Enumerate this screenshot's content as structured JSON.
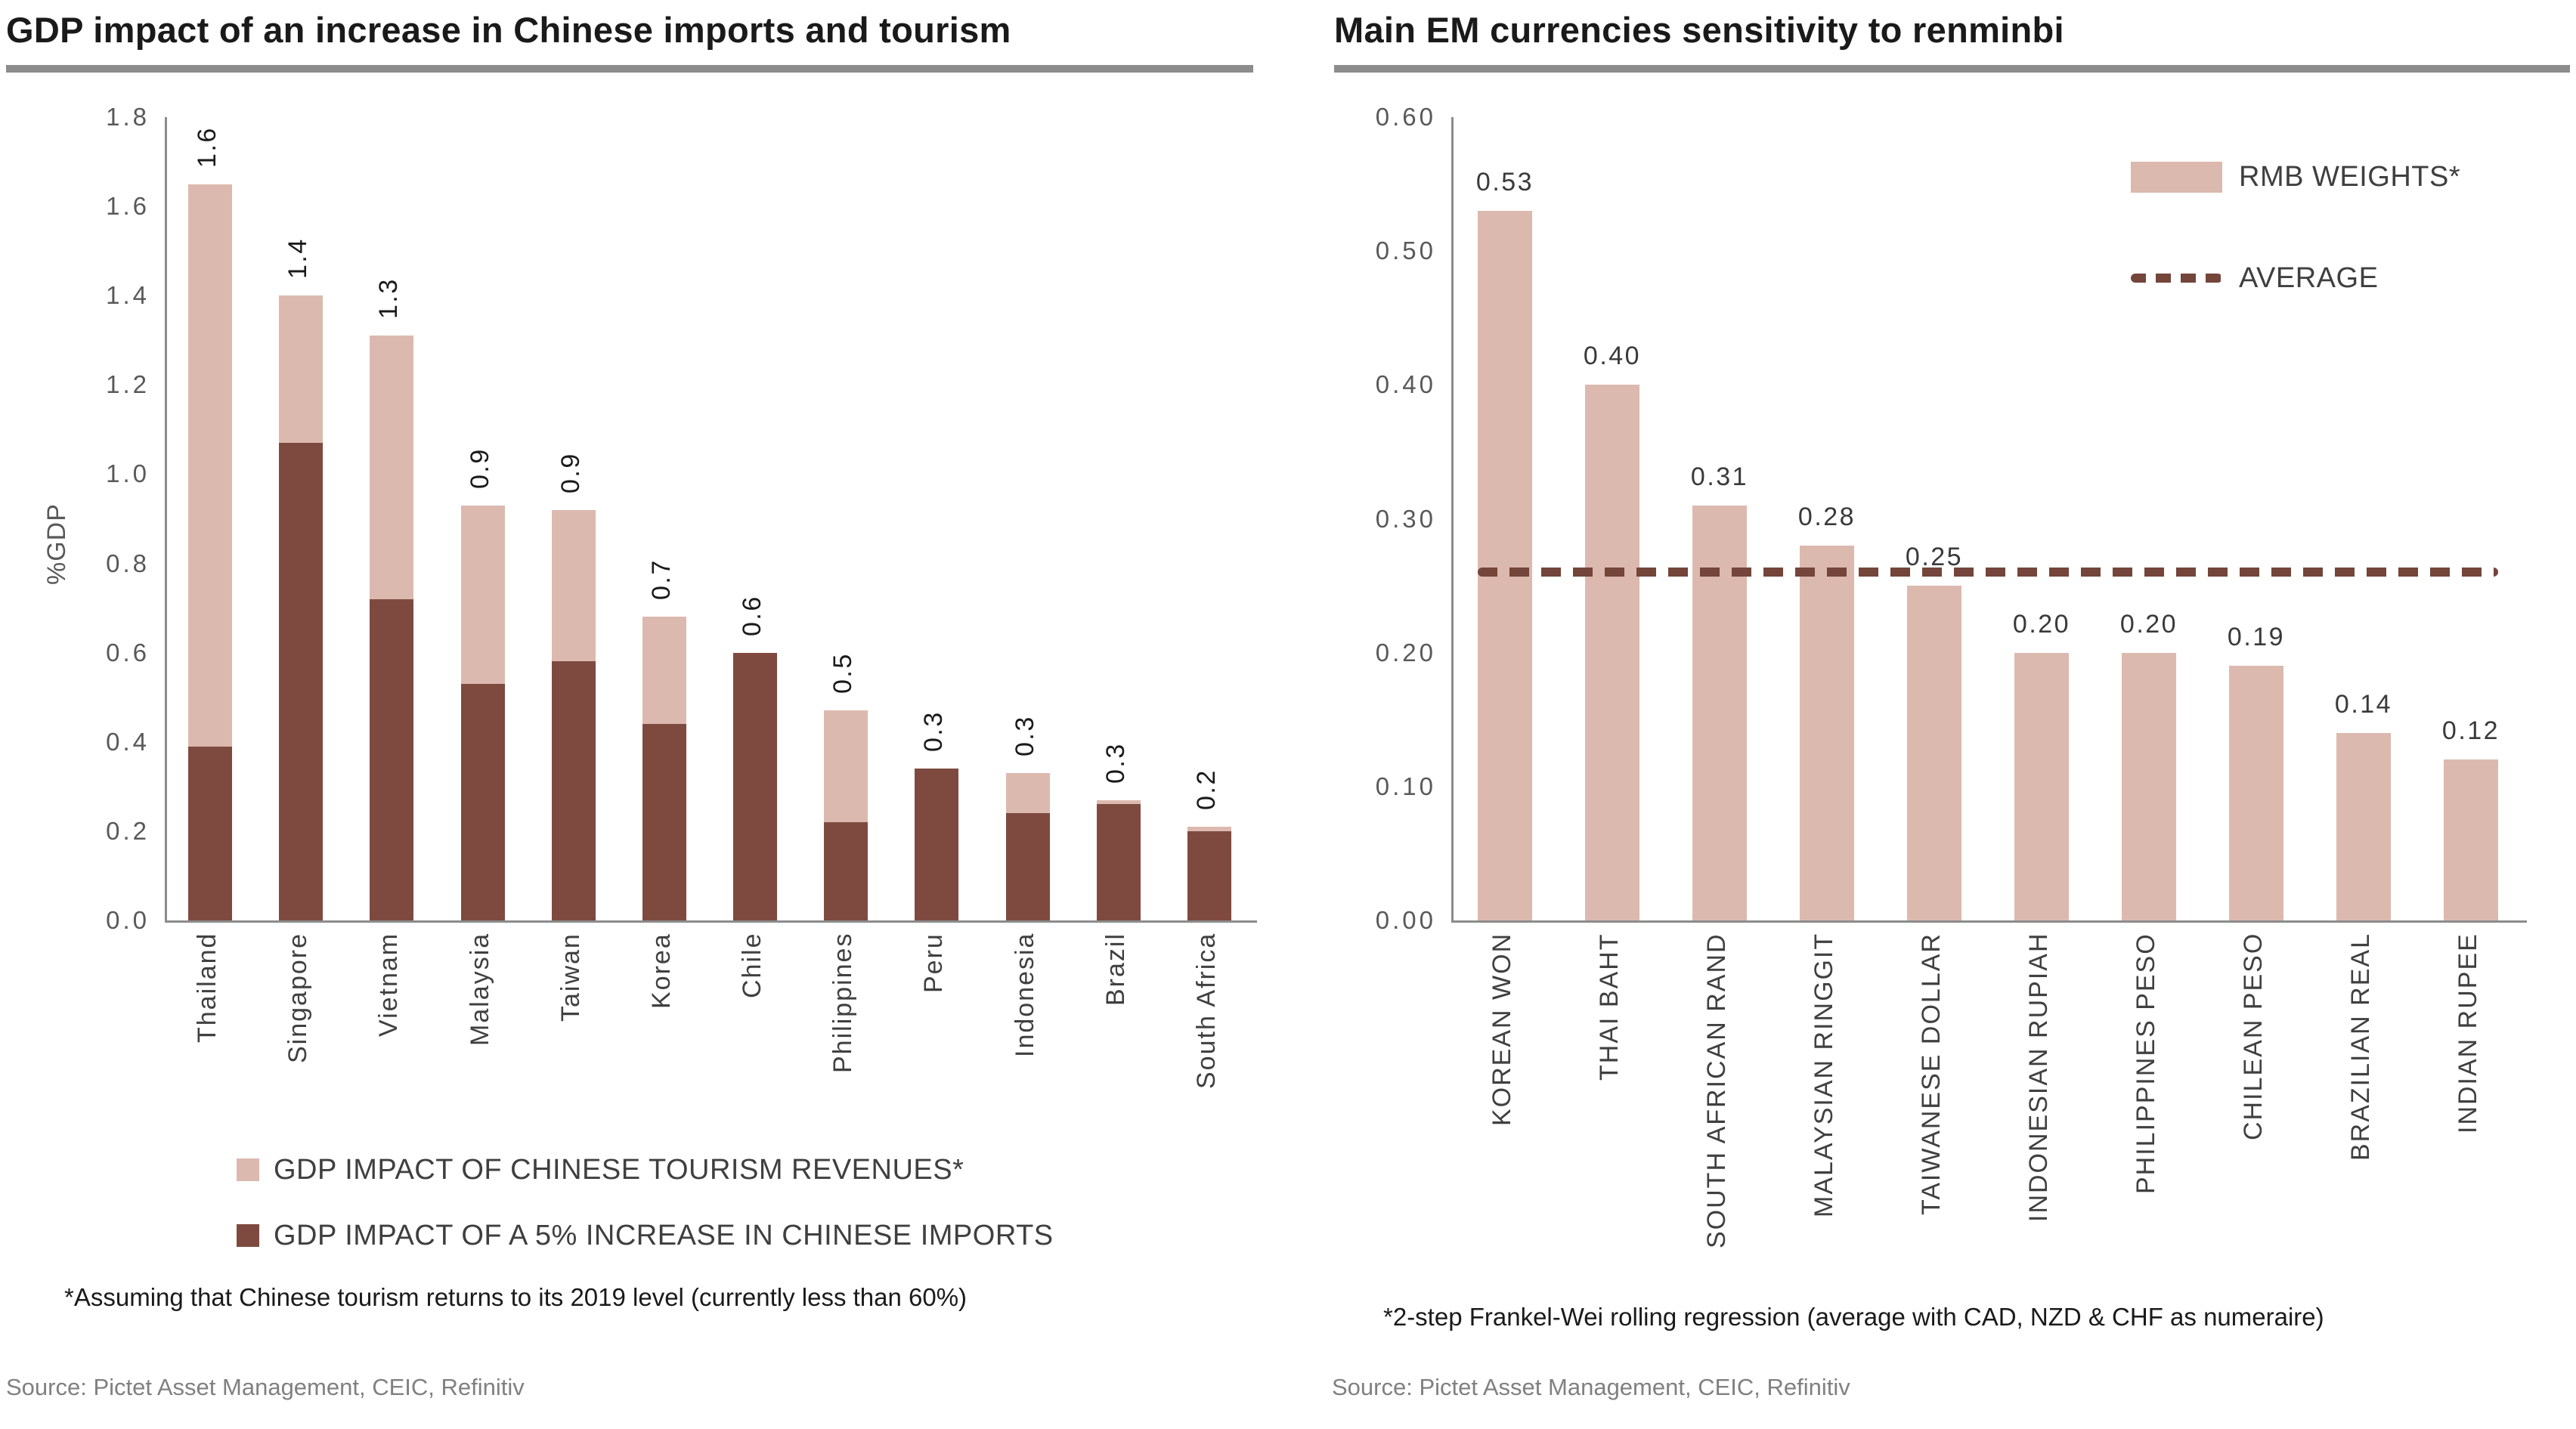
{
  "chart_data": [
    {
      "type": "bar",
      "stacked": true,
      "title": "GDP impact of an increase in Chinese imports and tourism",
      "xlabel": "",
      "ylabel": "%GDP",
      "ylim": [
        0,
        1.8
      ],
      "yticks": [
        "0.0",
        "0.2",
        "0.4",
        "0.6",
        "0.8",
        "1.0",
        "1.2",
        "1.4",
        "1.6",
        "1.8"
      ],
      "grid": false,
      "categories": [
        "Thailand",
        "Singapore",
        "Vietnam",
        "Malaysia",
        "Taiwan",
        "Korea",
        "Chile",
        "Philippines",
        "Peru",
        "Indonesia",
        "Brazil",
        "South Africa"
      ],
      "series": [
        {
          "name": "GDP IMPACT OF A 5% INCREASE IN CHINESE IMPORTS",
          "color": "#7E4A40",
          "values": [
            0.39,
            1.07,
            0.72,
            0.53,
            0.58,
            0.44,
            0.6,
            0.22,
            0.34,
            0.24,
            0.26,
            0.2
          ]
        },
        {
          "name": "GDP IMPACT OF CHINESE TOURISM REVENUES*",
          "color": "#DCB9AF",
          "values": [
            1.26,
            0.33,
            0.59,
            0.4,
            0.34,
            0.24,
            0.0,
            0.25,
            0.0,
            0.09,
            0.01,
            0.01
          ]
        }
      ],
      "bar_total_labels": [
        "1.6",
        "1.4",
        "1.3",
        "0.9",
        "0.9",
        "0.7",
        "0.6",
        "0.5",
        "0.3",
        "0.3",
        "0.3",
        "0.2"
      ],
      "value_label_orientation": "vertical",
      "category_label_orientation": "vertical"
    },
    {
      "type": "bar",
      "stacked": false,
      "title": "Main EM currencies sensitivity to renminbi",
      "xlabel": "",
      "ylabel": "",
      "ylim": [
        0,
        0.6
      ],
      "yticks": [
        "0.00",
        "0.10",
        "0.20",
        "0.30",
        "0.40",
        "0.50",
        "0.60"
      ],
      "grid": false,
      "categories": [
        "KOREAN WON",
        "THAI BAHT",
        "SOUTH AFRICAN RAND",
        "MALAYSIAN RINGGIT",
        "TAIWANESE DOLLAR",
        "INDONESIAN RUPIAH",
        "PHILIPPINES PESO",
        "CHILEAN PESO",
        "BRAZILIAN REAL",
        "INDIAN RUPEE"
      ],
      "series": [
        {
          "name": "RMB WEIGHTS*",
          "color": "#DCB9AF",
          "values": [
            0.53,
            0.4,
            0.31,
            0.28,
            0.25,
            0.2,
            0.2,
            0.19,
            0.14,
            0.12
          ]
        }
      ],
      "bar_total_labels": [
        "0.53",
        "0.40",
        "0.31",
        "0.28",
        "0.25",
        "0.20",
        "0.20",
        "0.19",
        "0.14",
        "0.12"
      ],
      "average_line": {
        "label": "AVERAGE",
        "value": 0.26,
        "color": "#74453B",
        "style": "dashed"
      },
      "legend_position": "top-right",
      "value_label_orientation": "horizontal",
      "category_label_orientation": "vertical"
    }
  ],
  "panels": {
    "left": {
      "legend": [
        {
          "label": "GDP IMPACT OF CHINESE TOURISM REVENUES*",
          "color": "#DCB9AF",
          "marker": "square"
        },
        {
          "label": "GDP IMPACT OF A 5% INCREASE IN CHINESE IMPORTS",
          "color": "#7E4A40",
          "marker": "square"
        }
      ],
      "footnote": "*Assuming that Chinese tourism returns to its 2019 level (currently less than 60%)",
      "source": "Source: Pictet Asset Management, CEIC, Refinitiv"
    },
    "right": {
      "legend": [
        {
          "label": "RMB WEIGHTS*",
          "color": "#DCB9AF",
          "marker": "rect"
        },
        {
          "label": "AVERAGE",
          "color": "#74453B",
          "marker": "dashed-line"
        }
      ],
      "footnote": "*2-step Frankel-Wei rolling regression (average with CAD, NZD & CHF as numeraire)",
      "source": "Source: Pictet Asset Management, CEIC, Refinitiv"
    }
  },
  "styles": {
    "background": "#FFFFFF",
    "title_color": "#1A1A1A",
    "rule_color": "#8C8C8C",
    "axis_color": "#8C8C8C",
    "tick_label_color": "#595959",
    "category_label_color": "#404040",
    "value_label_color": "#1A1A1A",
    "legend_text_color": "#3F3F3F",
    "source_color": "#808080"
  }
}
